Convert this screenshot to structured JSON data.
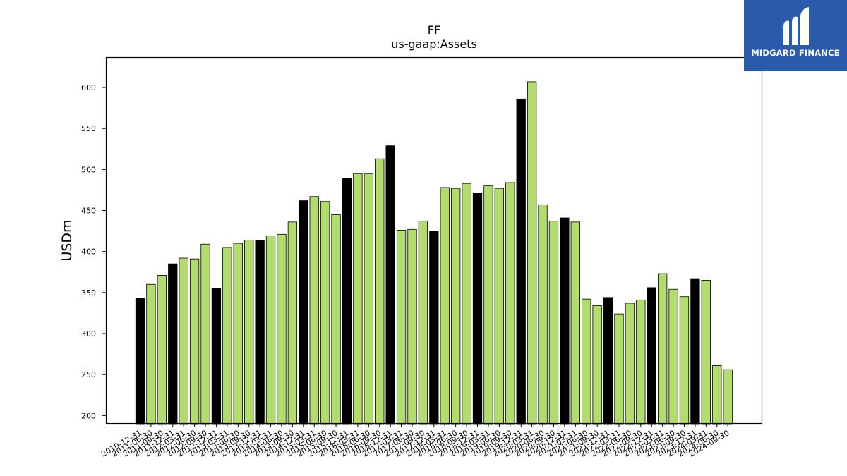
{
  "chart_data": {
    "type": "bar",
    "title": "FF",
    "subtitle": "us-gaap:Assets",
    "xlabel": "",
    "ylabel": "USDm",
    "ylim": [
      190,
      637
    ],
    "yticks": [
      200,
      250,
      300,
      350,
      400,
      450,
      500,
      550,
      600
    ],
    "grid": false,
    "colors": {
      "annual": "#000000",
      "quarterly": "#b2dc6e",
      "edge": "#000000"
    },
    "categories": [
      "2010-12-31",
      "2011-06-30",
      "2011-09-30",
      "2011-12-31",
      "2012-03-31",
      "2012-06-30",
      "2012-09-30",
      "2012-12-31",
      "2013-03-31",
      "2013-06-30",
      "2013-09-30",
      "2013-12-31",
      "2014-03-31",
      "2014-06-30",
      "2014-09-30",
      "2014-12-31",
      "2015-03-31",
      "2015-06-30",
      "2015-09-30",
      "2015-12-31",
      "2016-03-31",
      "2016-06-30",
      "2016-09-30",
      "2016-12-31",
      "2017-03-31",
      "2017-06-30",
      "2017-09-30",
      "2017-12-31",
      "2018-03-31",
      "2018-06-30",
      "2018-09-30",
      "2018-12-31",
      "2019-03-31",
      "2019-06-30",
      "2019-09-30",
      "2019-12-31",
      "2020-03-31",
      "2020-06-30",
      "2020-09-30",
      "2020-12-31",
      "2021-03-31",
      "2021-06-30",
      "2021-09-30",
      "2021-12-31",
      "2022-03-31",
      "2022-06-30",
      "2022-09-30",
      "2022-12-31",
      "2023-03-31",
      "2023-06-30",
      "2023-09-30",
      "2023-12-31",
      "2024-03-31",
      "2024-06-30",
      "2024-09-30"
    ],
    "values": [
      343,
      360,
      371,
      385,
      392,
      391,
      409,
      355,
      405,
      410,
      414,
      414,
      419,
      421,
      436,
      462,
      467,
      461,
      445,
      489,
      495,
      495,
      513,
      529,
      426,
      427,
      437,
      425,
      478,
      477,
      483,
      471,
      480,
      477,
      484,
      586,
      607,
      457,
      437,
      441,
      436,
      342,
      334,
      344,
      324,
      337,
      341,
      356,
      373,
      354,
      345,
      367,
      365,
      261,
      256
    ],
    "annual_flags": [
      1,
      0,
      0,
      1,
      0,
      0,
      0,
      1,
      0,
      0,
      0,
      1,
      0,
      0,
      0,
      1,
      0,
      0,
      0,
      1,
      0,
      0,
      0,
      1,
      0,
      0,
      0,
      1,
      0,
      0,
      0,
      1,
      0,
      0,
      0,
      1,
      0,
      0,
      0,
      1,
      0,
      0,
      0,
      1,
      0,
      0,
      0,
      1,
      0,
      0,
      0,
      1,
      0,
      0,
      0
    ]
  },
  "logo": {
    "text": "MIDGARD FINANCE",
    "background": "#2b5aab"
  }
}
